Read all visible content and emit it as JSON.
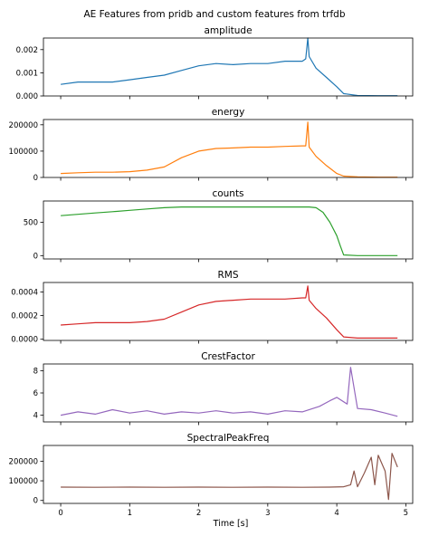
{
  "figure": {
    "title": "AE Features from pridb and custom features from trfdb",
    "xlabel": "Time [s]"
  },
  "chart_data": [
    {
      "type": "line",
      "title": "amplitude",
      "color": "#1f77b4",
      "ylim": [
        0,
        0.0025
      ],
      "yticks": [
        0,
        0.001,
        0.002
      ],
      "ytick_labels": [
        "0.000",
        "0.001",
        "0.002"
      ],
      "xlim": [
        -0.25,
        5.1
      ],
      "xticks": [
        0,
        1,
        2,
        3,
        4,
        5
      ],
      "x": [
        0,
        0.25,
        0.5,
        0.75,
        1.0,
        1.25,
        1.5,
        1.75,
        2.0,
        2.25,
        2.5,
        2.75,
        3.0,
        3.25,
        3.5,
        3.55,
        3.58,
        3.6,
        3.7,
        3.85,
        4.0,
        4.1,
        4.3,
        4.6,
        4.88
      ],
      "y": [
        0.0005,
        0.0006,
        0.0006,
        0.0006,
        0.0007,
        0.0008,
        0.0009,
        0.0011,
        0.0013,
        0.0014,
        0.00135,
        0.0014,
        0.0014,
        0.0015,
        0.0015,
        0.0016,
        0.0025,
        0.0017,
        0.0012,
        0.0008,
        0.0004,
        0.0001,
        2e-05,
        1e-05,
        1e-05
      ]
    },
    {
      "type": "line",
      "title": "energy",
      "color": "#ff7f0e",
      "ylim": [
        0,
        220000
      ],
      "yticks": [
        0,
        100000,
        200000
      ],
      "ytick_labels": [
        "0",
        "100000",
        "200000"
      ],
      "xlim": [
        -0.25,
        5.1
      ],
      "xticks": [
        0,
        1,
        2,
        3,
        4,
        5
      ],
      "x": [
        0,
        0.25,
        0.5,
        0.75,
        1.0,
        1.25,
        1.5,
        1.75,
        2.0,
        2.25,
        2.5,
        2.75,
        3.0,
        3.25,
        3.5,
        3.55,
        3.58,
        3.6,
        3.7,
        3.85,
        4.0,
        4.1,
        4.3,
        4.6,
        4.88
      ],
      "y": [
        15000,
        18000,
        20000,
        20000,
        22000,
        28000,
        40000,
        75000,
        100000,
        110000,
        112000,
        115000,
        115000,
        118000,
        120000,
        120000,
        210000,
        115000,
        80000,
        45000,
        15000,
        5000,
        2000,
        1000,
        1000
      ]
    },
    {
      "type": "line",
      "title": "counts",
      "color": "#2ca02c",
      "ylim": [
        -50,
        820
      ],
      "yticks": [
        0,
        500
      ],
      "ytick_labels": [
        "0",
        "500"
      ],
      "xlim": [
        -0.25,
        5.1
      ],
      "xticks": [
        0,
        1,
        2,
        3,
        4,
        5
      ],
      "x": [
        0,
        0.25,
        0.5,
        0.75,
        1.0,
        1.25,
        1.5,
        1.75,
        2.0,
        2.25,
        2.5,
        2.75,
        3.0,
        3.25,
        3.5,
        3.6,
        3.7,
        3.8,
        3.9,
        4.0,
        4.05,
        4.1,
        4.3,
        4.6,
        4.88
      ],
      "y": [
        600,
        620,
        640,
        660,
        680,
        700,
        720,
        730,
        730,
        730,
        730,
        730,
        730,
        730,
        730,
        730,
        720,
        650,
        500,
        300,
        150,
        10,
        0,
        0,
        0
      ]
    },
    {
      "type": "line",
      "title": "RMS",
      "color": "#d62728",
      "ylim": [
        -1e-05,
        0.00048
      ],
      "yticks": [
        0,
        0.0002,
        0.0004
      ],
      "ytick_labels": [
        "0.0000",
        "0.0002",
        "0.0004"
      ],
      "xlim": [
        -0.25,
        5.1
      ],
      "xticks": [
        0,
        1,
        2,
        3,
        4,
        5
      ],
      "x": [
        0,
        0.25,
        0.5,
        0.75,
        1.0,
        1.25,
        1.5,
        1.75,
        2.0,
        2.25,
        2.5,
        2.75,
        3.0,
        3.25,
        3.5,
        3.55,
        3.58,
        3.6,
        3.7,
        3.85,
        4.0,
        4.1,
        4.3,
        4.6,
        4.88
      ],
      "y": [
        0.00012,
        0.00013,
        0.00014,
        0.00014,
        0.00014,
        0.00015,
        0.00017,
        0.00023,
        0.00029,
        0.00032,
        0.00033,
        0.00034,
        0.00034,
        0.00034,
        0.00035,
        0.00035,
        0.00045,
        0.00033,
        0.00026,
        0.00018,
        8e-05,
        2e-05,
        1e-05,
        1e-05,
        1e-05
      ]
    },
    {
      "type": "line",
      "title": "CrestFactor",
      "color": "#9467bd",
      "ylim": [
        3.4,
        8.6
      ],
      "yticks": [
        4,
        6,
        8
      ],
      "ytick_labels": [
        "4",
        "6",
        "8"
      ],
      "xlim": [
        -0.25,
        5.1
      ],
      "xticks": [
        0,
        1,
        2,
        3,
        4,
        5
      ],
      "x": [
        0,
        0.25,
        0.5,
        0.75,
        1.0,
        1.25,
        1.5,
        1.75,
        2.0,
        2.25,
        2.5,
        2.75,
        3.0,
        3.25,
        3.5,
        3.75,
        3.9,
        4.0,
        4.15,
        4.2,
        4.3,
        4.5,
        4.7,
        4.88
      ],
      "y": [
        4.0,
        4.3,
        4.1,
        4.5,
        4.2,
        4.4,
        4.1,
        4.3,
        4.2,
        4.4,
        4.2,
        4.3,
        4.1,
        4.4,
        4.3,
        4.8,
        5.3,
        5.6,
        5.0,
        8.3,
        4.6,
        4.5,
        4.2,
        3.9
      ]
    },
    {
      "type": "line",
      "title": "SpectralPeakFreq",
      "color": "#8c564b",
      "ylim": [
        -15000,
        280000
      ],
      "yticks": [
        0,
        100000,
        200000
      ],
      "ytick_labels": [
        "0",
        "100000",
        "200000"
      ],
      "xlim": [
        -0.25,
        5.1
      ],
      "xticks": [
        0,
        1,
        2,
        3,
        4,
        5
      ],
      "xtick_labels": [
        "0",
        "1",
        "2",
        "3",
        "4",
        "5"
      ],
      "x": [
        0,
        0.5,
        1.0,
        1.5,
        2.0,
        2.5,
        3.0,
        3.5,
        3.9,
        4.1,
        4.2,
        4.25,
        4.3,
        4.4,
        4.5,
        4.55,
        4.6,
        4.7,
        4.75,
        4.8,
        4.88
      ],
      "y": [
        68000,
        67000,
        68000,
        67000,
        68000,
        67000,
        68000,
        67000,
        68000,
        70000,
        80000,
        150000,
        70000,
        140000,
        220000,
        80000,
        230000,
        150000,
        5000,
        240000,
        170000
      ]
    }
  ]
}
